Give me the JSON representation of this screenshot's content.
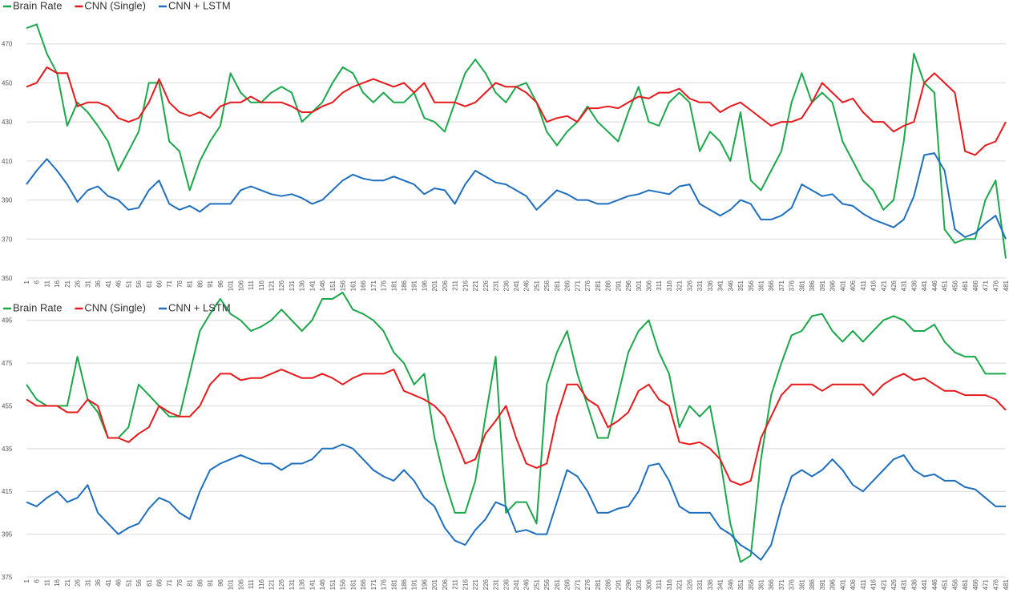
{
  "chart_data": [
    {
      "type": "line",
      "categories": [
        1,
        6,
        11,
        16,
        21,
        26,
        31,
        36,
        41,
        46,
        51,
        56,
        61,
        66,
        71,
        76,
        81,
        86,
        91,
        96,
        101,
        106,
        111,
        116,
        121,
        126,
        131,
        136,
        141,
        146,
        151,
        156,
        161,
        166,
        171,
        176,
        181,
        186,
        191,
        196,
        201,
        206,
        211,
        216,
        221,
        226,
        231,
        236,
        241,
        246,
        251,
        256,
        261,
        266,
        271,
        276,
        281,
        286,
        291,
        296,
        301,
        306,
        311,
        316,
        321,
        326,
        331,
        336,
        341,
        346,
        351,
        356,
        361,
        366,
        371,
        376,
        381,
        386,
        391,
        396,
        401,
        406,
        411,
        416,
        421,
        426,
        431,
        436,
        441,
        446,
        451,
        456,
        461,
        466,
        471,
        476,
        481
      ],
      "ylim": [
        350,
        490
      ],
      "yticks": [
        350,
        370,
        390,
        410,
        430,
        450,
        470
      ],
      "grid": true,
      "series": [
        {
          "name": "Brain Rate",
          "color": "#1aa84a",
          "values": [
            478,
            480,
            465,
            455,
            428,
            440,
            435,
            428,
            420,
            405,
            415,
            425,
            450,
            450,
            420,
            415,
            395,
            410,
            420,
            428,
            455,
            445,
            440,
            440,
            445,
            448,
            445,
            430,
            435,
            440,
            450,
            458,
            455,
            445,
            440,
            445,
            440,
            440,
            445,
            432,
            430,
            425,
            440,
            455,
            462,
            455,
            445,
            440,
            448,
            450,
            440,
            425,
            418,
            425,
            430,
            438,
            430,
            425,
            420,
            435,
            448,
            430,
            428,
            440,
            445,
            440,
            415,
            425,
            420,
            410,
            435,
            400,
            395,
            405,
            415,
            440,
            455,
            440,
            445,
            440,
            420,
            410,
            400,
            395,
            385,
            390,
            420,
            465,
            450,
            445,
            375,
            368,
            370,
            370,
            390,
            400,
            360
          ]
        },
        {
          "name": "CNN (Single)",
          "color": "#e8191c",
          "values": [
            448,
            450,
            458,
            455,
            455,
            438,
            440,
            440,
            438,
            432,
            430,
            432,
            440,
            452,
            440,
            435,
            433,
            435,
            432,
            438,
            440,
            440,
            443,
            440,
            440,
            440,
            438,
            435,
            435,
            438,
            440,
            445,
            448,
            450,
            452,
            450,
            448,
            450,
            445,
            450,
            440,
            440,
            440,
            438,
            440,
            445,
            450,
            448,
            448,
            445,
            440,
            430,
            432,
            433,
            430,
            437,
            437,
            438,
            437,
            440,
            443,
            442,
            445,
            445,
            447,
            442,
            440,
            440,
            435,
            438,
            440,
            436,
            432,
            428,
            430,
            430,
            432,
            440,
            450,
            445,
            440,
            442,
            435,
            430,
            430,
            425,
            428,
            430,
            450,
            455,
            450,
            445,
            415,
            413,
            418,
            420,
            430
          ]
        },
        {
          "name": "CNN + LSTM",
          "color": "#1f6fbf",
          "values": [
            398,
            405,
            411,
            405,
            398,
            389,
            395,
            397,
            392,
            390,
            385,
            386,
            395,
            400,
            388,
            385,
            387,
            384,
            388,
            388,
            388,
            395,
            397,
            395,
            393,
            392,
            393,
            391,
            388,
            390,
            395,
            400,
            403,
            401,
            400,
            400,
            402,
            400,
            398,
            393,
            396,
            395,
            388,
            398,
            405,
            402,
            399,
            398,
            395,
            392,
            385,
            390,
            395,
            393,
            390,
            390,
            388,
            388,
            390,
            392,
            393,
            395,
            394,
            393,
            397,
            398,
            388,
            385,
            382,
            385,
            390,
            388,
            380,
            380,
            382,
            386,
            398,
            395,
            392,
            393,
            388,
            387,
            383,
            380,
            378,
            376,
            380,
            392,
            413,
            414,
            405,
            375,
            371,
            373,
            378,
            382,
            370
          ]
        }
      ]
    },
    {
      "type": "line",
      "categories": [
        1,
        6,
        11,
        16,
        21,
        26,
        31,
        36,
        41,
        46,
        51,
        56,
        61,
        66,
        71,
        76,
        81,
        86,
        91,
        96,
        101,
        106,
        111,
        116,
        121,
        126,
        131,
        136,
        141,
        146,
        151,
        156,
        161,
        166,
        171,
        176,
        181,
        186,
        191,
        196,
        201,
        206,
        211,
        216,
        221,
        226,
        231,
        236,
        241,
        246,
        251,
        256,
        261,
        266,
        271,
        276,
        281,
        286,
        291,
        296,
        301,
        306,
        311,
        316,
        321,
        326,
        331,
        336,
        341,
        346,
        351,
        356,
        361,
        366,
        371,
        376,
        381,
        386,
        391,
        396,
        401,
        406,
        411,
        416,
        421,
        426,
        431,
        436,
        441,
        446,
        451,
        456,
        461,
        466,
        471,
        476,
        481
      ],
      "ylim": [
        375,
        505
      ],
      "yticks": [
        375,
        395,
        415,
        435,
        455,
        475,
        495
      ],
      "grid": true,
      "series": [
        {
          "name": "Brain Rate",
          "color": "#1aa84a",
          "values": [
            465,
            458,
            455,
            455,
            455,
            478,
            458,
            452,
            440,
            440,
            445,
            465,
            460,
            455,
            450,
            450,
            470,
            490,
            498,
            505,
            498,
            495,
            490,
            492,
            495,
            500,
            495,
            490,
            495,
            505,
            505,
            508,
            500,
            498,
            495,
            490,
            480,
            475,
            465,
            470,
            440,
            420,
            405,
            405,
            420,
            450,
            478,
            405,
            410,
            410,
            400,
            465,
            480,
            490,
            470,
            455,
            440,
            440,
            460,
            480,
            490,
            495,
            480,
            470,
            445,
            455,
            450,
            455,
            430,
            400,
            382,
            385,
            430,
            460,
            475,
            488,
            490,
            497,
            498,
            490,
            485,
            490,
            485,
            490,
            495,
            497,
            495,
            490,
            490,
            493,
            485,
            480,
            478,
            478,
            470,
            470,
            470
          ]
        },
        {
          "name": "CNN (Single)",
          "color": "#e8191c",
          "values": [
            458,
            455,
            455,
            455,
            452,
            452,
            458,
            455,
            440,
            440,
            438,
            442,
            445,
            455,
            452,
            450,
            450,
            455,
            465,
            470,
            470,
            467,
            468,
            468,
            470,
            472,
            470,
            468,
            468,
            470,
            468,
            465,
            468,
            470,
            470,
            470,
            472,
            462,
            460,
            458,
            455,
            450,
            440,
            428,
            430,
            442,
            448,
            455,
            440,
            428,
            426,
            428,
            450,
            465,
            465,
            458,
            455,
            445,
            448,
            452,
            462,
            465,
            458,
            455,
            438,
            437,
            438,
            435,
            430,
            420,
            418,
            420,
            440,
            450,
            460,
            465,
            465,
            465,
            462,
            465,
            465,
            465,
            465,
            460,
            465,
            468,
            470,
            467,
            468,
            465,
            462,
            462,
            460,
            460,
            460,
            458,
            453
          ]
        },
        {
          "name": "CNN + LSTM",
          "color": "#1f6fbf",
          "values": [
            410,
            408,
            412,
            415,
            410,
            412,
            418,
            405,
            400,
            395,
            398,
            400,
            407,
            412,
            410,
            405,
            402,
            415,
            425,
            428,
            430,
            432,
            430,
            428,
            428,
            425,
            428,
            428,
            430,
            435,
            435,
            437,
            435,
            430,
            425,
            422,
            420,
            425,
            420,
            412,
            408,
            398,
            392,
            390,
            397,
            402,
            410,
            408,
            396,
            397,
            395,
            395,
            410,
            425,
            422,
            415,
            405,
            405,
            407,
            408,
            415,
            427,
            428,
            420,
            408,
            405,
            405,
            405,
            398,
            395,
            390,
            387,
            383,
            390,
            408,
            422,
            425,
            422,
            425,
            430,
            425,
            418,
            415,
            420,
            425,
            430,
            432,
            425,
            422,
            423,
            420,
            420,
            417,
            416,
            412,
            408,
            408
          ]
        }
      ]
    }
  ]
}
